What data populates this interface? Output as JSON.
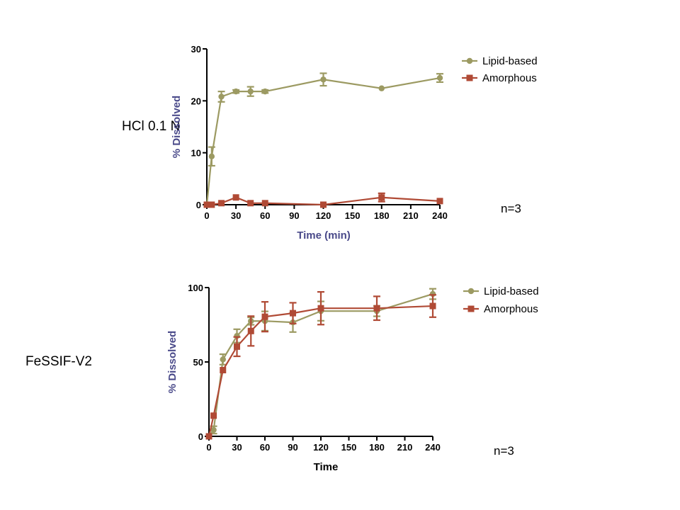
{
  "panels": [
    {
      "condition_label": "HCl 0.1 N",
      "n_label": "n=3"
    },
    {
      "condition_label": "FeSSIF-V2",
      "n_label": "n=3"
    }
  ],
  "colors": {
    "lipid": "#9c9a62",
    "amorphous": "#b04a35",
    "axis_title_top": "#4a4a8a",
    "axis_title_bottom": "#000000"
  },
  "chart_data": [
    {
      "type": "line",
      "title": "",
      "xlabel": "Time (min)",
      "ylabel": "% Dissolved",
      "xlim": [
        0,
        240
      ],
      "ylim": [
        0,
        30
      ],
      "x_ticks": [
        0,
        30,
        60,
        90,
        120,
        150,
        180,
        210,
        240
      ],
      "y_ticks": [
        0,
        10,
        20,
        30
      ],
      "legend_position": "top-right",
      "series": [
        {
          "name": "Lipid-based",
          "marker": "circle",
          "x": [
            0,
            5,
            15,
            30,
            45,
            60,
            120,
            180,
            240
          ],
          "y": [
            0,
            9.3,
            20.8,
            21.8,
            21.8,
            21.8,
            24.1,
            22.4,
            24.4
          ],
          "err": [
            0,
            1.8,
            1.0,
            0.3,
            0.9,
            0.3,
            1.2,
            0,
            0.8
          ]
        },
        {
          "name": "Amorphous",
          "marker": "square",
          "x": [
            0,
            5,
            15,
            30,
            45,
            60,
            120,
            180,
            240
          ],
          "y": [
            0,
            0,
            0.3,
            1.4,
            0.3,
            0.3,
            0,
            1.4,
            0.7
          ],
          "err": [
            0,
            0,
            0,
            0,
            0,
            0,
            0,
            0.8,
            0
          ]
        }
      ]
    },
    {
      "type": "line",
      "title": "",
      "xlabel": "Time",
      "ylabel": "% Dissolved",
      "xlim": [
        0,
        240
      ],
      "ylim": [
        0,
        100
      ],
      "x_ticks": [
        0,
        30,
        60,
        90,
        120,
        150,
        180,
        210,
        240
      ],
      "y_ticks": [
        0,
        50,
        100
      ],
      "legend_position": "top-right",
      "series": [
        {
          "name": "Lipid-based",
          "marker": "circle",
          "x": [
            0,
            5,
            15,
            30,
            45,
            60,
            90,
            120,
            180,
            240
          ],
          "y": [
            0,
            4.3,
            51.7,
            67.5,
            77.5,
            77.5,
            76.6,
            84.2,
            84.2,
            95.7
          ],
          "err": [
            0,
            2.5,
            3.5,
            4.5,
            2.5,
            6.5,
            6.5,
            6.5,
            3.5,
            3.5
          ]
        },
        {
          "name": "Amorphous",
          "marker": "square",
          "x": [
            0,
            5,
            15,
            30,
            45,
            60,
            90,
            120,
            180,
            240
          ],
          "y": [
            0,
            13.9,
            44.5,
            60.3,
            70.8,
            80.4,
            82.8,
            86.1,
            86.1,
            87.6
          ],
          "err": [
            0,
            0,
            0,
            6.5,
            10,
            10,
            7,
            11,
            8,
            7.5
          ]
        }
      ]
    }
  ]
}
